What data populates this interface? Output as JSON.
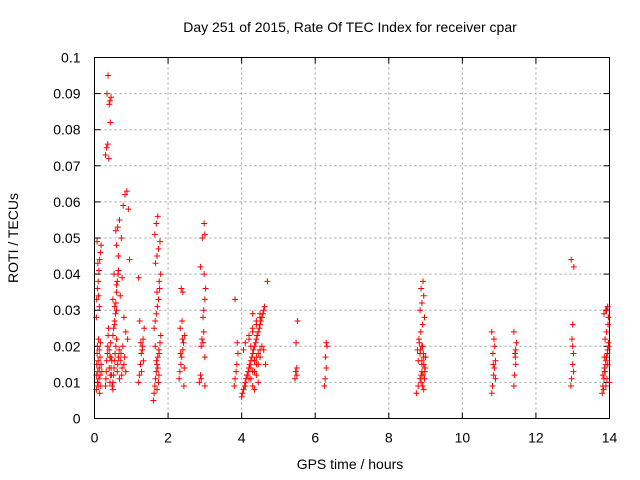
{
  "chart_data": {
    "type": "scatter",
    "title": "Day 251 of 2015, Rate Of TEC Index for receiver cpar",
    "xlabel": "GPS time / hours",
    "ylabel": "ROTI / TECUs",
    "xlim": [
      0,
      14
    ],
    "ylim": [
      0,
      0.1
    ],
    "xticks": [
      "0",
      "2",
      "4",
      "6",
      "8",
      "10",
      "12",
      "14"
    ],
    "yticks": [
      "0",
      "0.01",
      "0.02",
      "0.03",
      "0.04",
      "0.05",
      "0.06",
      "0.07",
      "0.08",
      "0.09",
      "0.1"
    ],
    "grid": true,
    "marker": "+",
    "color": "#ff0000",
    "series": [
      {
        "x": [
          0.05,
          0.05,
          0.06,
          0.07,
          0.08,
          0.08,
          0.09,
          0.1,
          0.1,
          0.11,
          0.12,
          0.13,
          0.13,
          0.14,
          0.15,
          0.15,
          0.16,
          0.17,
          0.18,
          0.2,
          0.05,
          0.06,
          0.08,
          0.1,
          0.12,
          0.14,
          0.16,
          0.18,
          0.07,
          0.09,
          0.11,
          0.13,
          0.3,
          0.31,
          0.32,
          0.33,
          0.35,
          0.36,
          0.37,
          0.38,
          0.4,
          0.42,
          0.43,
          0.45,
          0.3,
          0.33,
          0.36,
          0.39,
          0.42,
          0.45,
          0.34,
          0.37,
          0.4,
          0.43,
          0.5,
          0.52,
          0.53,
          0.55,
          0.56,
          0.58,
          0.6,
          0.62,
          0.63,
          0.65,
          0.67,
          0.68,
          0.7,
          0.72,
          0.74,
          0.75,
          0.77,
          0.8,
          0.82,
          0.85,
          0.5,
          0.55,
          0.6,
          0.65,
          0.7,
          0.75,
          0.8,
          0.85,
          0.9,
          0.53,
          0.58,
          0.63,
          0.68,
          0.73,
          0.78,
          0.83,
          0.88,
          0.92,
          0.95,
          0.4,
          0.42,
          0.44,
          0.45,
          0.46,
          0.47,
          0.5,
          0.52,
          0.55,
          0.57,
          0.6,
          0.62,
          0.64,
          0.65,
          0.6,
          0.58,
          0.55,
          0.5,
          0.48,
          0.6,
          1.2,
          1.22,
          1.25,
          1.27,
          1.3,
          1.32,
          1.35,
          1.23,
          1.28,
          1.33,
          1.2,
          1.26,
          1.3,
          1.6,
          1.62,
          1.64,
          1.66,
          1.68,
          1.7,
          1.72,
          1.75,
          1.78,
          1.8,
          1.62,
          1.65,
          1.68,
          1.71,
          1.74,
          1.77,
          1.8,
          1.66,
          1.7,
          1.74,
          1.78,
          1.64,
          1.68,
          1.72,
          1.76,
          1.7,
          1.75,
          1.72,
          1.68,
          1.76,
          1.65,
          1.7,
          1.74,
          2.3,
          2.32,
          2.35,
          2.37,
          2.4,
          2.42,
          2.45,
          2.33,
          2.38,
          2.43,
          2.36,
          2.4,
          2.44,
          2.34,
          2.39,
          2.85,
          2.88,
          2.9,
          2.92,
          2.95,
          2.97,
          3.0,
          3.02,
          2.88,
          2.93,
          2.98,
          3.0,
          2.95,
          2.9,
          2.97,
          3.0,
          3.0,
          2.98,
          3.8,
          3.82,
          3.85,
          3.87,
          3.9,
          3.82,
          3.88,
          4.0,
          4.05,
          4.1,
          4.15,
          4.2,
          4.25,
          4.3,
          4.35,
          4.4,
          4.45,
          4.5,
          4.55,
          4.6,
          4.65,
          4.02,
          4.08,
          4.12,
          4.18,
          4.22,
          4.28,
          4.32,
          4.38,
          4.42,
          4.48,
          4.52,
          4.58,
          4.62,
          4.05,
          4.1,
          4.2,
          4.3,
          4.4,
          4.5,
          4.15,
          4.25,
          4.35,
          4.45,
          4.55,
          4.1,
          4.2,
          4.3,
          4.4,
          4.5,
          4.6,
          4.2,
          4.3,
          4.4,
          4.5,
          4.25,
          4.35,
          4.45,
          4.3,
          4.4,
          4.5,
          4.35,
          4.45,
          4.4,
          4.7,
          4.3,
          4.25,
          4.35,
          5.45,
          5.47,
          5.5,
          5.48,
          5.52,
          5.5,
          6.25,
          6.27,
          6.3,
          6.28,
          6.32,
          6.3,
          8.75,
          8.8,
          8.85,
          8.9,
          8.95,
          9.0,
          8.78,
          8.83,
          8.88,
          8.93,
          8.98,
          8.8,
          8.85,
          8.9,
          8.95,
          8.82,
          8.87,
          8.92,
          8.97,
          8.85,
          8.9,
          8.95,
          8.88,
          8.93,
          8.98,
          8.9,
          8.95,
          8.86,
          8.92,
          8.97,
          8.9,
          8.94,
          8.99,
          8.88,
          8.92,
          10.8,
          10.82,
          10.85,
          10.87,
          10.9,
          10.83,
          10.88,
          10.86,
          10.8,
          10.9,
          10.84,
          11.4,
          11.42,
          11.45,
          11.43,
          11.47,
          11.4,
          11.45,
          11.44,
          12.95,
          12.97,
          13.0,
          13.02,
          12.98,
          13.0,
          13.03,
          12.96,
          13.0,
          13.02,
          13.8,
          13.82,
          13.85,
          13.87,
          13.9,
          13.92,
          13.95,
          13.97,
          14.0,
          13.82,
          13.86,
          13.9,
          13.94,
          13.98,
          13.84,
          13.88,
          13.92,
          13.96,
          13.85,
          13.9,
          13.95,
          13.88,
          13.93,
          13.9,
          13.95,
          13.86,
          13.92,
          13.97
        ],
        "y": [
          0.008,
          0.012,
          0.015,
          0.018,
          0.01,
          0.02,
          0.013,
          0.016,
          0.009,
          0.022,
          0.011,
          0.014,
          0.019,
          0.007,
          0.017,
          0.012,
          0.021,
          0.009,
          0.015,
          0.013,
          0.028,
          0.033,
          0.036,
          0.038,
          0.041,
          0.044,
          0.046,
          0.048,
          0.049,
          0.043,
          0.034,
          0.031,
          0.009,
          0.011,
          0.013,
          0.016,
          0.018,
          0.02,
          0.023,
          0.025,
          0.014,
          0.01,
          0.012,
          0.017,
          0.073,
          0.075,
          0.076,
          0.072,
          0.088,
          0.089,
          0.09,
          0.095,
          0.087,
          0.082,
          0.01,
          0.012,
          0.014,
          0.016,
          0.018,
          0.02,
          0.022,
          0.013,
          0.015,
          0.017,
          0.019,
          0.011,
          0.016,
          0.018,
          0.012,
          0.014,
          0.02,
          0.015,
          0.017,
          0.013,
          0.033,
          0.031,
          0.037,
          0.041,
          0.034,
          0.039,
          0.028,
          0.024,
          0.022,
          0.04,
          0.052,
          0.053,
          0.055,
          0.05,
          0.059,
          0.062,
          0.063,
          0.058,
          0.044,
          0.019,
          0.017,
          0.021,
          0.014,
          0.012,
          0.016,
          0.023,
          0.025,
          0.027,
          0.029,
          0.035,
          0.038,
          0.04,
          0.045,
          0.03,
          0.032,
          0.026,
          0.008,
          0.009,
          0.048,
          0.01,
          0.012,
          0.015,
          0.018,
          0.02,
          0.022,
          0.025,
          0.027,
          0.013,
          0.016,
          0.039,
          0.021,
          0.019,
          0.005,
          0.007,
          0.009,
          0.011,
          0.013,
          0.015,
          0.017,
          0.019,
          0.021,
          0.023,
          0.025,
          0.027,
          0.029,
          0.031,
          0.033,
          0.036,
          0.04,
          0.043,
          0.045,
          0.047,
          0.049,
          0.051,
          0.054,
          0.056,
          0.038,
          0.035,
          0.012,
          0.014,
          0.016,
          0.018,
          0.02,
          0.008,
          0.01,
          0.011,
          0.013,
          0.015,
          0.017,
          0.019,
          0.021,
          0.023,
          0.025,
          0.027,
          0.009,
          0.036,
          0.035,
          0.014,
          0.018,
          0.022,
          0.01,
          0.012,
          0.02,
          0.022,
          0.028,
          0.03,
          0.033,
          0.036,
          0.042,
          0.05,
          0.054,
          0.051,
          0.021,
          0.011,
          0.024,
          0.017,
          0.009,
          0.04,
          0.009,
          0.011,
          0.013,
          0.015,
          0.018,
          0.033,
          0.021,
          0.006,
          0.008,
          0.01,
          0.012,
          0.014,
          0.016,
          0.018,
          0.02,
          0.022,
          0.024,
          0.026,
          0.028,
          0.03,
          0.015,
          0.007,
          0.009,
          0.011,
          0.013,
          0.015,
          0.017,
          0.019,
          0.021,
          0.023,
          0.025,
          0.027,
          0.029,
          0.031,
          0.019,
          0.021,
          0.023,
          0.025,
          0.027,
          0.029,
          0.012,
          0.014,
          0.016,
          0.018,
          0.02,
          0.009,
          0.011,
          0.013,
          0.015,
          0.017,
          0.019,
          0.022,
          0.024,
          0.026,
          0.028,
          0.011,
          0.013,
          0.015,
          0.009,
          0.017,
          0.019,
          0.008,
          0.01,
          0.012,
          0.038,
          0.029,
          0.02,
          0.016,
          0.011,
          0.013,
          0.014,
          0.021,
          0.027,
          0.012,
          0.009,
          0.011,
          0.014,
          0.017,
          0.02,
          0.021,
          0.007,
          0.009,
          0.011,
          0.013,
          0.015,
          0.017,
          0.019,
          0.021,
          0.01,
          0.012,
          0.014,
          0.016,
          0.018,
          0.02,
          0.008,
          0.022,
          0.024,
          0.026,
          0.028,
          0.03,
          0.032,
          0.034,
          0.036,
          0.038,
          0.013,
          0.015,
          0.017,
          0.019,
          0.009,
          0.011,
          0.016,
          0.018,
          0.014,
          0.012,
          0.02,
          0.007,
          0.009,
          0.012,
          0.014,
          0.016,
          0.018,
          0.02,
          0.022,
          0.024,
          0.011,
          0.015,
          0.009,
          0.012,
          0.015,
          0.018,
          0.021,
          0.024,
          0.019,
          0.017,
          0.009,
          0.011,
          0.015,
          0.018,
          0.022,
          0.026,
          0.042,
          0.044,
          0.02,
          0.013,
          0.007,
          0.009,
          0.011,
          0.013,
          0.015,
          0.017,
          0.019,
          0.021,
          0.01,
          0.012,
          0.014,
          0.016,
          0.018,
          0.02,
          0.008,
          0.022,
          0.024,
          0.026,
          0.029,
          0.03,
          0.031,
          0.013,
          0.011,
          0.009,
          0.015,
          0.017,
          0.03,
          0.028
        ]
      }
    ]
  }
}
